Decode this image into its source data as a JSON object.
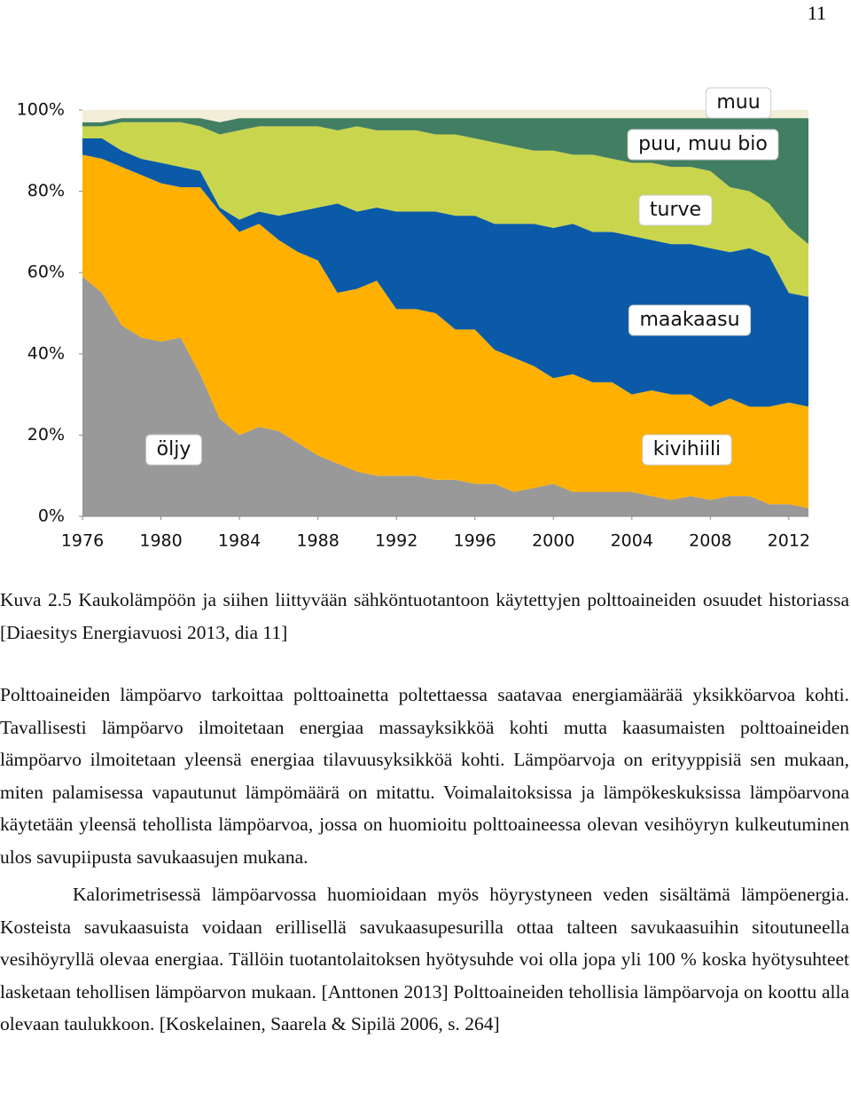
{
  "page_number": "11",
  "chart_data": {
    "type": "stacked_area",
    "x": [
      1976,
      1977,
      1978,
      1979,
      1980,
      1981,
      1982,
      1983,
      1984,
      1985,
      1986,
      1987,
      1988,
      1989,
      1990,
      1991,
      1992,
      1993,
      1994,
      1995,
      1996,
      1997,
      1998,
      1999,
      2000,
      2001,
      2002,
      2003,
      2004,
      2005,
      2006,
      2007,
      2008,
      2009,
      2010,
      2011,
      2012,
      2013
    ],
    "xlim": [
      1976,
      2013
    ],
    "xticks": [
      1976,
      1980,
      1984,
      1988,
      1992,
      1996,
      2000,
      2004,
      2008,
      2012
    ],
    "ylim": [
      0,
      100
    ],
    "yticks": [
      {
        "value": 0,
        "label": "0%"
      },
      {
        "value": 20,
        "label": "20%"
      },
      {
        "value": 40,
        "label": "40%"
      },
      {
        "value": 60,
        "label": "60%"
      },
      {
        "value": 80,
        "label": "80%"
      },
      {
        "value": 100,
        "label": "100%"
      }
    ],
    "series": [
      {
        "name": "öljy",
        "color": "#999999",
        "values": [
          59,
          55,
          47,
          44,
          43,
          44,
          35,
          24,
          20,
          22,
          21,
          18,
          15,
          13,
          11,
          10,
          10,
          10,
          9,
          9,
          8,
          8,
          6,
          7,
          8,
          6,
          6,
          6,
          6,
          5,
          4,
          5,
          4,
          5,
          5,
          3,
          3,
          2
        ]
      },
      {
        "name": "kivihiili",
        "color": "#ffb000",
        "values": [
          30,
          33,
          39,
          40,
          39,
          37,
          46,
          51,
          50,
          50,
          47,
          47,
          48,
          42,
          45,
          48,
          41,
          41,
          41,
          37,
          38,
          33,
          33,
          30,
          26,
          29,
          27,
          27,
          24,
          26,
          26,
          25,
          23,
          24,
          22,
          24,
          25,
          25
        ]
      },
      {
        "name": "maakaasu",
        "color": "#0a5aa8",
        "values": [
          4,
          5,
          4,
          4,
          5,
          5,
          4,
          1,
          3,
          3,
          6,
          10,
          13,
          22,
          19,
          18,
          24,
          24,
          25,
          28,
          28,
          31,
          33,
          35,
          37,
          37,
          37,
          37,
          39,
          37,
          37,
          37,
          39,
          36,
          39,
          37,
          27,
          27
        ]
      },
      {
        "name": "turve",
        "color": "#c9d54c",
        "values": [
          3,
          3,
          7,
          9,
          10,
          11,
          11,
          18,
          22,
          21,
          22,
          21,
          20,
          18,
          21,
          19,
          20,
          20,
          19,
          20,
          19,
          20,
          19,
          18,
          19,
          17,
          19,
          18,
          18,
          19,
          19,
          19,
          19,
          16,
          14,
          13,
          16,
          13
        ]
      },
      {
        "name": "puu, muu bio",
        "color": "#427e62",
        "values": [
          1,
          1,
          1,
          1,
          1,
          1,
          2,
          3,
          3,
          2,
          2,
          2,
          2,
          3,
          2,
          3,
          3,
          3,
          4,
          4,
          5,
          6,
          7,
          8,
          8,
          9,
          9,
          10,
          11,
          11,
          12,
          12,
          13,
          17,
          18,
          21,
          27,
          31
        ]
      },
      {
        "name": "muu",
        "color": "#f2eed8",
        "values": [
          3,
          3,
          2,
          2,
          2,
          2,
          2,
          3,
          2,
          2,
          2,
          2,
          2,
          2,
          2,
          2,
          2,
          2,
          2,
          2,
          2,
          2,
          2,
          2,
          2,
          2,
          2,
          2,
          2,
          2,
          2,
          2,
          2,
          2,
          2,
          2,
          2,
          2
        ]
      }
    ]
  },
  "caption": "Kuva 2.5 Kaukolämpöön ja siihen liittyvään sähköntuotantoon käytettyjen polttoaineiden osuudet historiassa [Diaesitys Energiavuosi 2013, dia 11]",
  "paragraphs": [
    "Polttoaineiden lämpöarvo tarkoittaa polttoainetta poltettaessa saatavaa energiamäärää yksikköarvoa kohti. Tavallisesti lämpöarvo ilmoitetaan energiaa massayksikköä kohti mutta kaasumaisten polttoaineiden lämpöarvo ilmoitetaan yleensä energiaa tilavuusyksikköä kohti. Lämpöarvoja on erityyppisiä sen mukaan, miten palamisessa vapautunut lämpömäärä on mitattu. Voimalaitoksissa ja lämpökeskuksissa lämpöarvona käytetään yleensä tehollista lämpöarvoa, jossa on huomioitu polttoaineessa olevan vesihöyryn kulkeutuminen ulos savupiipusta savukaasujen mukana.",
    "Kalorimetrisessä lämpöarvossa huomioidaan myös höyrystyneen veden sisältämä lämpöenergia. Kosteista savukaasuista voidaan erillisellä savukaasupesurilla ottaa talteen savukaasuihin sitoutuneella vesihöyryllä olevaa energiaa. Tällöin tuotantolaitoksen hyötysuhde voi olla jopa yli 100 % koska hyötysuhteet lasketaan tehollisen lämpöarvon mukaan. [Anttonen 2013] Polttoaineiden tehollisia lämpöarvoja on koottu alla olevaan taulukkoon. [Koskelainen, Saarela & Sipilä 2006, s. 264]"
  ]
}
